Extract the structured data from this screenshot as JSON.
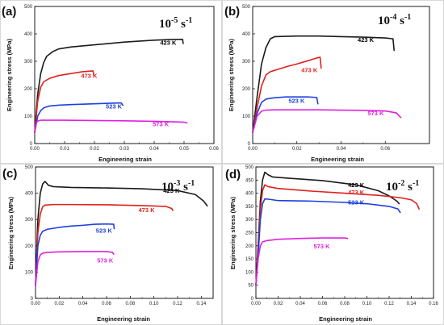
{
  "chart_data": [
    {
      "type": "line",
      "panel_label": "(a)",
      "rate": {
        "base": "10",
        "exp": "-5",
        "unit": "s",
        "unit_exp": "-1"
      },
      "xlabel": "Engineering strain",
      "ylabel": "Engineering stress (MPa)",
      "xlim": [
        0,
        0.06
      ],
      "ylim": [
        0,
        500
      ],
      "xticks": [
        "0.00",
        "0.01",
        "0.02",
        "0.03",
        "0.04",
        "0.05",
        "0.06"
      ],
      "yticks": [
        "0",
        "100",
        "200",
        "300",
        "400",
        "500"
      ],
      "series": [
        {
          "name": "423 K",
          "color": "#1a1a1a",
          "label_at": [
            0.042,
            360
          ],
          "x": [
            0,
            0.001,
            0.002,
            0.003,
            0.004,
            0.006,
            0.008,
            0.012,
            0.02,
            0.03,
            0.04,
            0.047,
            0.0495,
            0.0497
          ],
          "y": [
            40,
            180,
            255,
            295,
            318,
            335,
            345,
            352,
            360,
            370,
            377,
            380,
            380,
            365
          ]
        },
        {
          "name": "473 K",
          "color": "#e0201c",
          "label_at": [
            0.0155,
            240
          ],
          "x": [
            0,
            0.001,
            0.002,
            0.003,
            0.005,
            0.008,
            0.012,
            0.016,
            0.0195,
            0.0198
          ],
          "y": [
            40,
            155,
            205,
            225,
            238,
            248,
            255,
            262,
            265,
            250
          ]
        },
        {
          "name": "523 K",
          "color": "#1d3fe0",
          "label_at": [
            0.0238,
            128
          ],
          "x": [
            0,
            0.001,
            0.002,
            0.003,
            0.005,
            0.008,
            0.012,
            0.02,
            0.028,
            0.029,
            0.0295
          ],
          "y": [
            40,
            100,
            120,
            130,
            137,
            140,
            142,
            145,
            148,
            148,
            140
          ]
        },
        {
          "name": "573 K",
          "color": "#e020e0",
          "label_at": [
            0.0395,
            63
          ],
          "x": [
            0,
            0.0005,
            0.001,
            0.002,
            0.01,
            0.02,
            0.03,
            0.04,
            0.05,
            0.051
          ],
          "y": [
            40,
            75,
            82,
            85,
            85,
            84,
            83,
            81,
            78,
            75
          ]
        }
      ]
    },
    {
      "type": "line",
      "panel_label": "(b)",
      "rate": {
        "base": "10",
        "exp": "-4",
        "unit": "s",
        "unit_exp": "-1"
      },
      "xlabel": "Engineering strain",
      "ylabel": "Engineering stress (MPa)",
      "xlim": [
        0,
        0.08
      ],
      "ylim": [
        0,
        500
      ],
      "xticks": [
        "0.00",
        "0.02",
        "0.04",
        "0.06"
      ],
      "yticks": [
        "0",
        "100",
        "200",
        "300",
        "400",
        "500"
      ],
      "series": [
        {
          "name": "423 K",
          "color": "#1a1a1a",
          "label_at": [
            0.0475,
            370
          ],
          "x": [
            0,
            0.002,
            0.004,
            0.006,
            0.008,
            0.01,
            0.02,
            0.03,
            0.04,
            0.05,
            0.06,
            0.0635,
            0.064
          ],
          "y": [
            40,
            170,
            290,
            350,
            382,
            390,
            392,
            392,
            390,
            388,
            385,
            382,
            340
          ]
        },
        {
          "name": "473 K",
          "color": "#e0201c",
          "label_at": [
            0.022,
            260
          ],
          "x": [
            0,
            0.002,
            0.004,
            0.006,
            0.008,
            0.012,
            0.016,
            0.02,
            0.025,
            0.029,
            0.0305,
            0.031
          ],
          "y": [
            40,
            130,
            210,
            250,
            262,
            272,
            282,
            290,
            302,
            312,
            315,
            275
          ]
        },
        {
          "name": "523 K",
          "color": "#1d3fe0",
          "label_at": [
            0.0162,
            148
          ],
          "x": [
            0,
            0.002,
            0.004,
            0.006,
            0.008,
            0.01,
            0.015,
            0.02,
            0.025,
            0.029,
            0.0295
          ],
          "y": [
            40,
            110,
            150,
            162,
            165,
            167,
            170,
            170,
            170,
            168,
            145
          ]
        },
        {
          "name": "573 K",
          "color": "#e020e0",
          "label_at": [
            0.052,
            103
          ],
          "x": [
            0,
            0.002,
            0.004,
            0.006,
            0.01,
            0.02,
            0.03,
            0.04,
            0.05,
            0.06,
            0.065,
            0.067
          ],
          "y": [
            40,
            100,
            118,
            122,
            123,
            123,
            123,
            122,
            121,
            119,
            112,
            95
          ]
        }
      ]
    },
    {
      "type": "line",
      "panel_label": "(c)",
      "rate": {
        "base": "10",
        "exp": "-3",
        "unit": "s",
        "unit_exp": "-1"
      },
      "xlabel": "Engineering strain",
      "ylabel": "Engineering stress (MPa)",
      "xlim": [
        0,
        0.15
      ],
      "ylim": [
        0,
        500
      ],
      "xticks": [
        "0.00",
        "0.02",
        "0.04",
        "0.06",
        "0.08",
        "0.10",
        "0.12",
        "0.14"
      ],
      "yticks": [
        "0",
        "100",
        "200",
        "300",
        "400",
        "500"
      ],
      "series": [
        {
          "name": "423 K",
          "color": "#1a1a1a",
          "label_at": [
            0.108,
            402
          ],
          "x": [
            0,
            0.002,
            0.004,
            0.006,
            0.008,
            0.011,
            0.015,
            0.03,
            0.06,
            0.09,
            0.12,
            0.135,
            0.142,
            0.145
          ],
          "y": [
            50,
            300,
            400,
            435,
            445,
            430,
            425,
            422,
            420,
            417,
            410,
            395,
            370,
            352
          ]
        },
        {
          "name": "473 K",
          "color": "#e0201c",
          "label_at": [
            0.087,
            328
          ],
          "x": [
            0,
            0.002,
            0.004,
            0.006,
            0.008,
            0.015,
            0.03,
            0.06,
            0.09,
            0.11,
            0.115,
            0.116
          ],
          "y": [
            50,
            250,
            320,
            348,
            355,
            357,
            357,
            356,
            353,
            350,
            342,
            335
          ]
        },
        {
          "name": "523 K",
          "color": "#1d3fe0",
          "label_at": [
            0.051,
            250
          ],
          "x": [
            0,
            0.002,
            0.004,
            0.006,
            0.01,
            0.02,
            0.03,
            0.04,
            0.05,
            0.06,
            0.066,
            0.0665
          ],
          "y": [
            50,
            200,
            240,
            255,
            263,
            270,
            275,
            278,
            282,
            283,
            282,
            265
          ]
        },
        {
          "name": "573 K",
          "color": "#e020e0",
          "label_at": [
            0.052,
            137
          ],
          "x": [
            0,
            0.002,
            0.004,
            0.006,
            0.01,
            0.02,
            0.04,
            0.06,
            0.065,
            0.066
          ],
          "y": [
            50,
            140,
            165,
            172,
            175,
            177,
            178,
            178,
            175,
            168
          ]
        }
      ]
    },
    {
      "type": "line",
      "panel_label": "(d)",
      "rate": {
        "base": "10",
        "exp": "-2",
        "unit": "s",
        "unit_exp": "-1"
      },
      "xlabel": "Engineering strain",
      "ylabel": "Engineering stress (MPa)",
      "xlim": [
        0,
        0.16
      ],
      "ylim": [
        0,
        500
      ],
      "xticks": [
        "0.00",
        "0.02",
        "0.04",
        "0.06",
        "0.08",
        "0.10",
        "0.12",
        "0.14",
        "0.16"
      ],
      "yticks": [
        "0",
        "50",
        "100",
        "150",
        "200",
        "250",
        "300",
        "350",
        "400",
        "450",
        "500"
      ],
      "series": [
        {
          "name": "423 K",
          "color": "#1a1a1a",
          "label_at": [
            0.083,
            424
          ],
          "x": [
            0,
            0.002,
            0.004,
            0.006,
            0.008,
            0.011,
            0.015,
            0.03,
            0.06,
            0.09,
            0.11,
            0.12,
            0.127,
            0.129
          ],
          "y": [
            50,
            200,
            370,
            450,
            480,
            470,
            462,
            457,
            448,
            432,
            410,
            390,
            370,
            360
          ]
        },
        {
          "name": "473 K",
          "color": "#e0201c",
          "label_at": [
            0.083,
            396
          ],
          "x": [
            0,
            0.002,
            0.004,
            0.006,
            0.008,
            0.011,
            0.02,
            0.05,
            0.08,
            0.11,
            0.13,
            0.14,
            0.145,
            0.147
          ],
          "y": [
            50,
            190,
            340,
            410,
            432,
            425,
            418,
            408,
            400,
            392,
            383,
            375,
            360,
            340
          ]
        },
        {
          "name": "523 K",
          "color": "#1d3fe0",
          "label_at": [
            0.083,
            358
          ],
          "x": [
            0,
            0.002,
            0.004,
            0.006,
            0.008,
            0.01,
            0.02,
            0.05,
            0.08,
            0.1,
            0.12,
            0.128,
            0.13
          ],
          "y": [
            50,
            160,
            300,
            360,
            378,
            378,
            372,
            370,
            365,
            360,
            350,
            340,
            327
          ]
        },
        {
          "name": "573 K",
          "color": "#e020e0",
          "label_at": [
            0.052,
            190
          ],
          "x": [
            0,
            0.002,
            0.004,
            0.006,
            0.01,
            0.02,
            0.04,
            0.06,
            0.08,
            0.0825
          ],
          "y": [
            50,
            150,
            200,
            215,
            220,
            225,
            228,
            230,
            230,
            228
          ]
        }
      ]
    }
  ]
}
